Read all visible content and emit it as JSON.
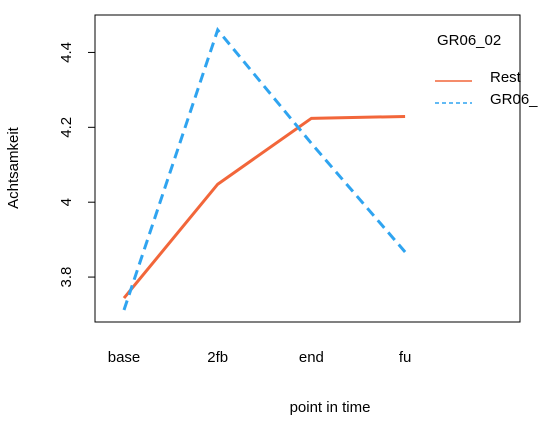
{
  "chart_data": {
    "type": "line",
    "x_label": "point in time",
    "y_label": "Achtsamkeit",
    "categories": [
      "base",
      "2fb",
      "end",
      "fu"
    ],
    "series": [
      {
        "name": "Rest",
        "color": "#f2663a",
        "dash": false,
        "values": [
          3.744,
          4.048,
          4.224,
          4.229
        ]
      },
      {
        "name": "GR06_",
        "color": "#2fa4f0",
        "dash": true,
        "values": [
          3.712,
          4.46,
          4.157,
          3.867
        ]
      }
    ],
    "legend_title": "GR06_02",
    "legend": "top-right",
    "ylim": [
      3.68,
      4.5
    ],
    "yticks": [
      3.8,
      4.0,
      4.2,
      4.4
    ]
  }
}
